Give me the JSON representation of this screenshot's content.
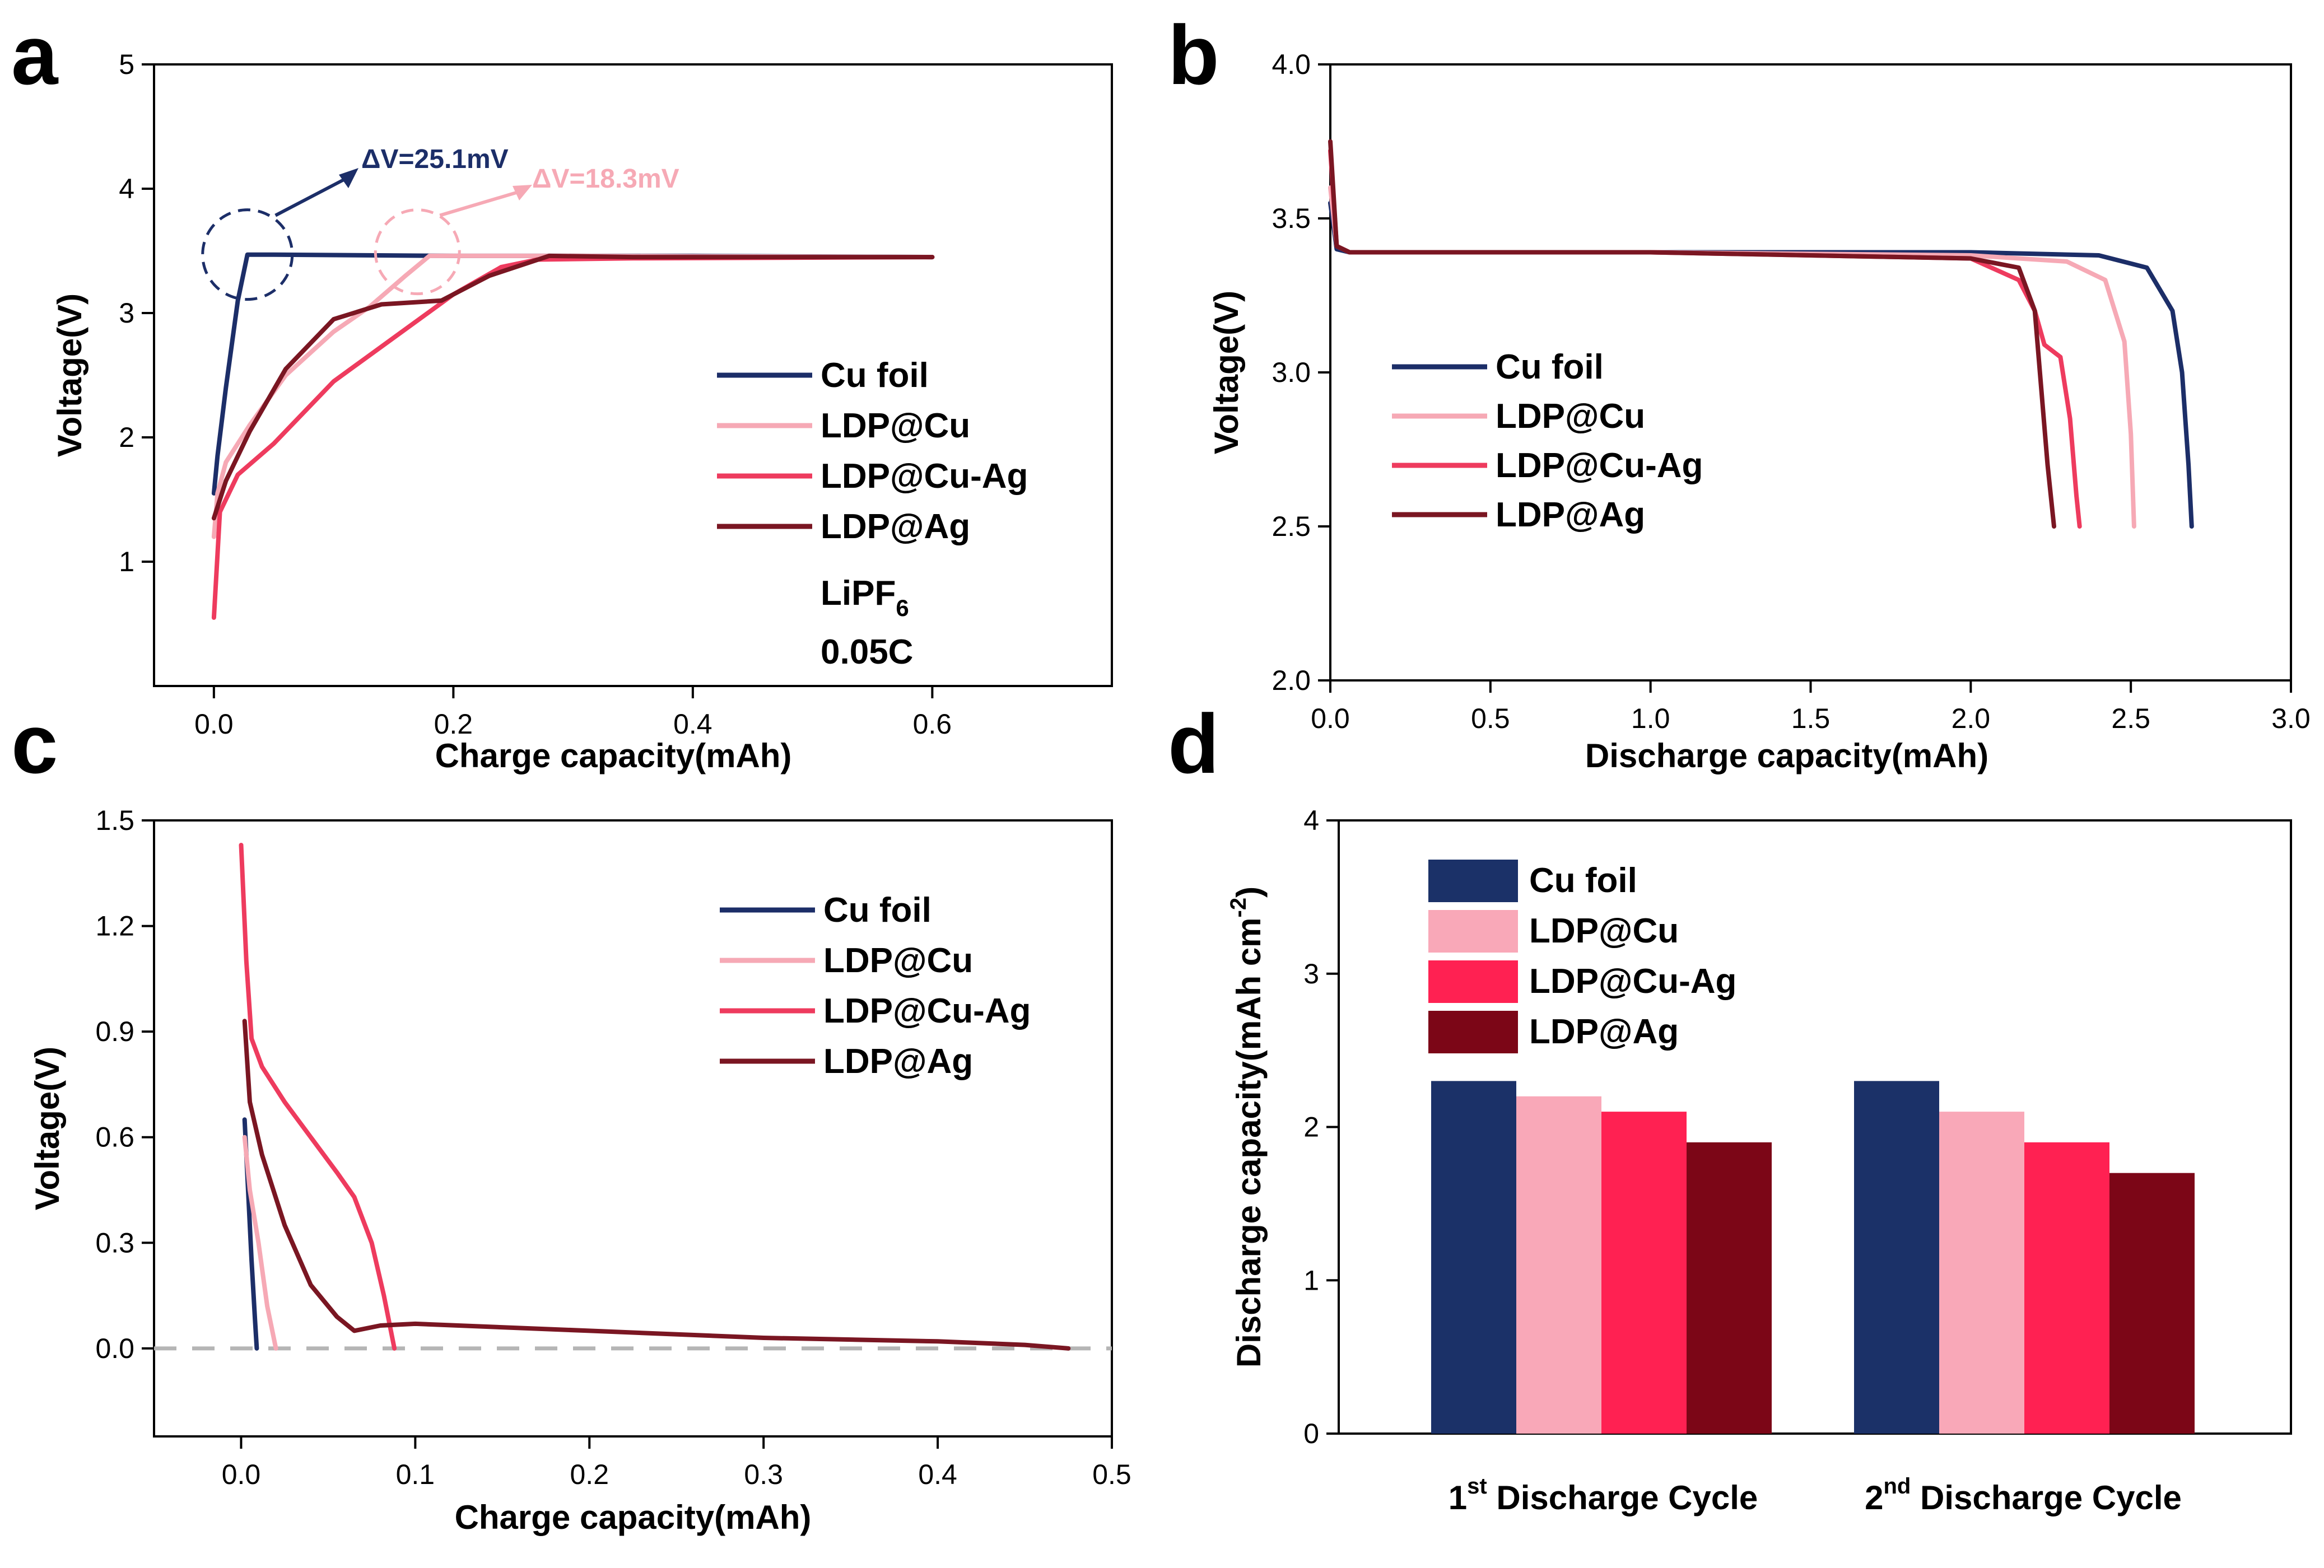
{
  "chart_data": [
    {
      "panel": "a",
      "type": "line",
      "xlabel": "Charge capacity(mAh)",
      "ylabel": "Voltage(V)",
      "xlim": [
        -0.05,
        0.75
      ],
      "ylim": [
        0,
        5
      ],
      "xticks": [
        "0.0",
        "0.2",
        "0.4",
        "0.6"
      ],
      "yticks": [
        "1",
        "2",
        "3",
        "4",
        "5"
      ],
      "legend": [
        "Cu foil",
        "LDP@Cu",
        "LDP@Cu-Ag",
        "LDP@Ag"
      ],
      "annotations": [
        "ΔV=25.1mV",
        "ΔV=18.3mV"
      ],
      "conditions": {
        "salt": "LiPF",
        "salt_sub": "6",
        "rate": "0.05C"
      },
      "series": [
        {
          "name": "Cu foil",
          "color": "#1c2e68",
          "x": [
            0,
            0.003,
            0.01,
            0.02,
            0.028,
            0.05,
            0.2,
            0.4,
            0.6
          ],
          "y": [
            1.55,
            1.85,
            2.4,
            3.1,
            3.47,
            3.47,
            3.46,
            3.46,
            3.45
          ]
        },
        {
          "name": "LDP@Cu",
          "color": "#f6a9b5",
          "x": [
            0,
            0.003,
            0.01,
            0.03,
            0.06,
            0.1,
            0.13,
            0.16,
            0.18,
            0.3,
            0.6
          ],
          "y": [
            1.2,
            1.55,
            1.8,
            2.1,
            2.5,
            2.85,
            3.05,
            3.3,
            3.46,
            3.46,
            3.45
          ]
        },
        {
          "name": "LDP@Cu-Ag",
          "color": "#ee3b5e",
          "x": [
            0,
            0.005,
            0.02,
            0.05,
            0.1,
            0.15,
            0.2,
            0.24,
            0.27,
            0.35,
            0.6
          ],
          "y": [
            0.55,
            1.4,
            1.7,
            1.95,
            2.45,
            2.8,
            3.15,
            3.37,
            3.43,
            3.44,
            3.45
          ]
        },
        {
          "name": "LDP@Ag",
          "color": "#7a1622",
          "x": [
            0,
            0.01,
            0.03,
            0.06,
            0.1,
            0.14,
            0.19,
            0.23,
            0.28,
            0.35,
            0.6
          ],
          "y": [
            1.35,
            1.65,
            2.05,
            2.55,
            2.95,
            3.07,
            3.1,
            3.3,
            3.46,
            3.45,
            3.45
          ]
        }
      ]
    },
    {
      "panel": "b",
      "type": "line",
      "xlabel": "Discharge capacity(mAh)",
      "ylabel": "Voltage(V)",
      "xlim": [
        0,
        3
      ],
      "ylim": [
        2,
        4
      ],
      "xticks": [
        "0.0",
        "0.5",
        "1.0",
        "1.5",
        "2.0",
        "2.5",
        "3.0"
      ],
      "yticks": [
        "2.0",
        "2.5",
        "3.0",
        "3.5",
        "4.0"
      ],
      "legend": [
        "Cu foil",
        "LDP@Cu",
        "LDP@Cu-Ag",
        "LDP@Ag"
      ],
      "series": [
        {
          "name": "Cu foil",
          "color": "#1c2e68",
          "x": [
            0,
            0.02,
            0.06,
            1.0,
            2.0,
            2.4,
            2.55,
            2.63,
            2.66,
            2.68,
            2.69
          ],
          "y": [
            3.55,
            3.4,
            3.39,
            3.39,
            3.39,
            3.38,
            3.34,
            3.2,
            3.0,
            2.7,
            2.5
          ]
        },
        {
          "name": "LDP@Cu",
          "color": "#f6a9b5",
          "x": [
            0,
            0.02,
            0.06,
            1.0,
            2.0,
            2.3,
            2.42,
            2.48,
            2.5,
            2.51
          ],
          "y": [
            3.6,
            3.41,
            3.39,
            3.39,
            3.38,
            3.36,
            3.3,
            3.1,
            2.8,
            2.5
          ]
        },
        {
          "name": "LDP@Cu-Ag",
          "color": "#ee3b5e",
          "x": [
            0,
            0.02,
            0.06,
            1.0,
            2.0,
            2.15,
            2.2,
            2.23,
            2.28,
            2.31,
            2.33,
            2.34
          ],
          "y": [
            3.72,
            3.41,
            3.39,
            3.39,
            3.37,
            3.3,
            3.2,
            3.09,
            3.05,
            2.85,
            2.6,
            2.5
          ]
        },
        {
          "name": "LDP@Ag",
          "color": "#7a1622",
          "x": [
            0,
            0.02,
            0.06,
            1.0,
            2.0,
            2.15,
            2.2,
            2.22,
            2.24,
            2.26
          ],
          "y": [
            3.75,
            3.41,
            3.39,
            3.39,
            3.37,
            3.34,
            3.2,
            2.95,
            2.7,
            2.5
          ]
        }
      ]
    },
    {
      "panel": "c",
      "type": "line",
      "xlabel": "Charge capacity(mAh)",
      "ylabel": "Voltage(V)",
      "xlim": [
        -0.05,
        0.5
      ],
      "ylim": [
        -0.25,
        1.5
      ],
      "xticks": [
        "0.0",
        "0.1",
        "0.2",
        "0.3",
        "0.4",
        "0.5"
      ],
      "yticks": [
        "0.0",
        "0.3",
        "0.6",
        "0.9",
        "1.2",
        "1.5"
      ],
      "legend": [
        "Cu foil",
        "LDP@Cu",
        "LDP@Cu-Ag",
        "LDP@Ag"
      ],
      "series": [
        {
          "name": "Cu foil",
          "color": "#1c2e68",
          "x": [
            0.002,
            0.004,
            0.006,
            0.008,
            0.009
          ],
          "y": [
            0.65,
            0.45,
            0.25,
            0.08,
            0.0
          ]
        },
        {
          "name": "LDP@Cu",
          "color": "#f6a9b5",
          "x": [
            0.002,
            0.005,
            0.01,
            0.015,
            0.02
          ],
          "y": [
            0.6,
            0.45,
            0.3,
            0.12,
            0.0
          ]
        },
        {
          "name": "LDP@Cu-Ag",
          "color": "#ee3b5e",
          "x": [
            0.0,
            0.003,
            0.006,
            0.012,
            0.025,
            0.04,
            0.055,
            0.065,
            0.075,
            0.082,
            0.088
          ],
          "y": [
            1.43,
            1.1,
            0.88,
            0.8,
            0.7,
            0.6,
            0.5,
            0.43,
            0.3,
            0.15,
            0.0
          ]
        },
        {
          "name": "LDP@Ag",
          "color": "#7a1622",
          "x": [
            0.002,
            0.005,
            0.012,
            0.025,
            0.04,
            0.055,
            0.065,
            0.08,
            0.1,
            0.2,
            0.3,
            0.4,
            0.45,
            0.475
          ],
          "y": [
            0.93,
            0.7,
            0.55,
            0.35,
            0.18,
            0.09,
            0.05,
            0.065,
            0.07,
            0.05,
            0.03,
            0.02,
            0.01,
            0.0
          ]
        }
      ],
      "baseline": {
        "y": 0,
        "style": "dashed"
      }
    },
    {
      "panel": "d",
      "type": "bar",
      "ylabel": "Discharge capacity(mAh cm",
      "ylabel_sup": "-2",
      "ylabel_end": ")",
      "ylim": [
        0,
        4
      ],
      "yticks": [
        "0",
        "1",
        "2",
        "3",
        "4"
      ],
      "categories": [
        {
          "pre": "1",
          "sup": "st",
          "post": " Discharge Cycle"
        },
        {
          "pre": "2",
          "sup": "nd",
          "post": " Discharge Cycle"
        }
      ],
      "legend": [
        "Cu foil",
        "LDP@Cu",
        "LDP@Cu-Ag",
        "LDP@Ag"
      ],
      "series": [
        {
          "name": "Cu foil",
          "color": "#1b3168",
          "values": [
            2.3,
            2.3
          ]
        },
        {
          "name": "LDP@Cu",
          "color": "#f9a8b8",
          "values": [
            2.2,
            2.1
          ]
        },
        {
          "name": "LDP@Cu-Ag",
          "color": "#ff2152",
          "values": [
            2.1,
            1.9
          ]
        },
        {
          "name": "LDP@Ag",
          "color": "#7c0617",
          "values": [
            1.9,
            1.7
          ]
        }
      ]
    }
  ],
  "labels": {
    "a": "a",
    "b": "b",
    "c": "c",
    "d": "d"
  }
}
